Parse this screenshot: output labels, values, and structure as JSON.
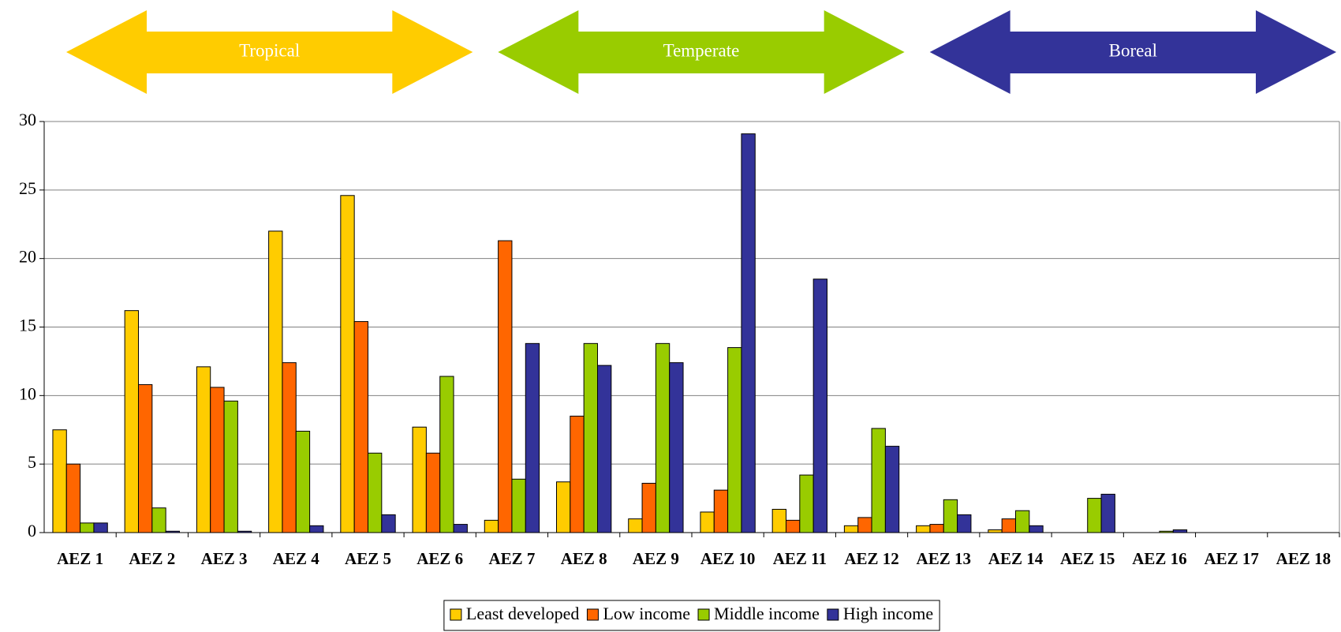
{
  "chart_data": {
    "type": "bar",
    "annotations": [
      {
        "text": "Tropical",
        "color": "#ffcc00"
      },
      {
        "text": "Temperate",
        "color": "#99cc00"
      },
      {
        "text": "Boreal",
        "color": "#333399"
      }
    ],
    "categories": [
      "AEZ 1",
      "AEZ 2",
      "AEZ 3",
      "AEZ 4",
      "AEZ 5",
      "AEZ 6",
      "AEZ 7",
      "AEZ 8",
      "AEZ 9",
      "AEZ 10",
      "AEZ 11",
      "AEZ 12",
      "AEZ 13",
      "AEZ 14",
      "AEZ 15",
      "AEZ 16",
      "AEZ 17",
      "AEZ 18"
    ],
    "series": [
      {
        "name": "Least developed",
        "color": "#ffcc00",
        "values": [
          7.5,
          16.2,
          12.1,
          22.0,
          24.6,
          7.7,
          0.9,
          3.7,
          1.0,
          1.5,
          1.7,
          0.5,
          0.5,
          0.2,
          0,
          0,
          0,
          0
        ]
      },
      {
        "name": "Low income",
        "color": "#ff6600",
        "values": [
          5.0,
          10.8,
          10.6,
          12.4,
          15.4,
          5.8,
          21.3,
          8.5,
          3.6,
          3.1,
          0.9,
          1.1,
          0.6,
          1.0,
          0,
          0,
          0,
          0
        ]
      },
      {
        "name": "Middle income",
        "color": "#99cc00",
        "values": [
          0.7,
          1.8,
          9.6,
          7.4,
          5.8,
          11.4,
          3.9,
          13.8,
          13.8,
          13.5,
          4.2,
          7.6,
          2.4,
          1.6,
          2.5,
          0.1,
          0,
          0
        ]
      },
      {
        "name": "High income",
        "color": "#333399",
        "values": [
          0.7,
          0.1,
          0.1,
          0.5,
          1.3,
          0.6,
          13.8,
          12.2,
          12.4,
          29.1,
          18.5,
          6.3,
          1.3,
          0.5,
          2.8,
          0.2,
          0,
          0
        ]
      }
    ],
    "ylim": [
      0,
      30
    ],
    "yticks": [
      0,
      5,
      10,
      15,
      20,
      25,
      30
    ],
    "grid": true,
    "legend": "bottom"
  }
}
